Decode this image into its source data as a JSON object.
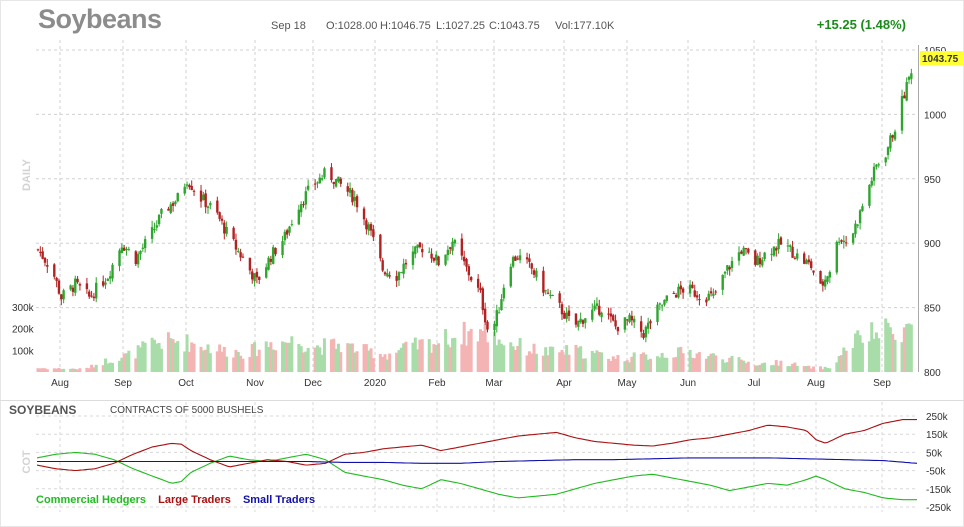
{
  "header": {
    "title": "Soybeans",
    "date": "Sep 18",
    "open": "O:1028.00",
    "high": "H:1046.75",
    "low": "L:1027.25",
    "close": "C:1043.75",
    "volume": "Vol:177.10K",
    "change": "+15.25 (1.48%)"
  },
  "colors": {
    "up": "#2ea62e",
    "down": "#b22222",
    "volume_up": "#a8dca8",
    "volume_down": "#f4b4b4",
    "last_price_bg": "#ffff33",
    "commercial": "#22bb22",
    "large": "#aa1111",
    "small": "#1111aa"
  },
  "chart_data": [
    {
      "type": "candlestick",
      "y_side_label": "DAILY",
      "last_price_label": "1043.75",
      "ylim": [
        800,
        1050
      ],
      "y_ticks": [
        "1050",
        "1000",
        "950",
        "900",
        "850",
        "800"
      ],
      "volume_ticks": [
        "300k",
        "200k",
        "100k"
      ],
      "volume_max_k": 300,
      "x_labels": [
        "Aug",
        "Sep",
        "Oct",
        "Nov",
        "Dec",
        "2020",
        "Feb",
        "Mar",
        "Apr",
        "May",
        "Jun",
        "Jul",
        "Aug",
        "Sep"
      ],
      "close_keypoints": [
        [
          0,
          895
        ],
        [
          6,
          880
        ],
        [
          10,
          858
        ],
        [
          16,
          868
        ],
        [
          22,
          858
        ],
        [
          30,
          875
        ],
        [
          36,
          900
        ],
        [
          42,
          888
        ],
        [
          48,
          905
        ],
        [
          54,
          925
        ],
        [
          60,
          935
        ],
        [
          64,
          950
        ],
        [
          70,
          935
        ],
        [
          76,
          925
        ],
        [
          82,
          905
        ],
        [
          88,
          888
        ],
        [
          94,
          870
        ],
        [
          100,
          890
        ],
        [
          106,
          905
        ],
        [
          112,
          930
        ],
        [
          118,
          945
        ],
        [
          124,
          955
        ],
        [
          130,
          945
        ],
        [
          136,
          935
        ],
        [
          142,
          912
        ],
        [
          148,
          880
        ],
        [
          154,
          875
        ],
        [
          160,
          890
        ],
        [
          166,
          898
        ],
        [
          172,
          885
        ],
        [
          178,
          902
        ],
        [
          184,
          880
        ],
        [
          190,
          860
        ],
        [
          194,
          825
        ],
        [
          198,
          850
        ],
        [
          202,
          885
        ],
        [
          206,
          890
        ],
        [
          212,
          880
        ],
        [
          218,
          862
        ],
        [
          224,
          850
        ],
        [
          230,
          835
        ],
        [
          236,
          845
        ],
        [
          242,
          850
        ],
        [
          248,
          835
        ],
        [
          254,
          840
        ],
        [
          260,
          830
        ],
        [
          266,
          848
        ],
        [
          272,
          860
        ],
        [
          278,
          865
        ],
        [
          284,
          860
        ],
        [
          290,
          858
        ],
        [
          296,
          880
        ],
        [
          302,
          895
        ],
        [
          308,
          885
        ],
        [
          314,
          895
        ],
        [
          320,
          900
        ],
        [
          326,
          890
        ],
        [
          332,
          882
        ],
        [
          336,
          865
        ],
        [
          340,
          880
        ],
        [
          344,
          905
        ],
        [
          348,
          900
        ],
        [
          352,
          918
        ],
        [
          356,
          940
        ],
        [
          360,
          960
        ],
        [
          364,
          970
        ],
        [
          368,
          990
        ],
        [
          371,
          1010
        ],
        [
          374,
          1028
        ],
        [
          376,
          1043.75
        ]
      ],
      "volume_keypoints": [
        [
          0,
          20
        ],
        [
          20,
          15
        ],
        [
          30,
          60
        ],
        [
          40,
          90
        ],
        [
          50,
          150
        ],
        [
          60,
          160
        ],
        [
          70,
          140
        ],
        [
          80,
          110
        ],
        [
          90,
          100
        ],
        [
          100,
          150
        ],
        [
          110,
          160
        ],
        [
          120,
          130
        ],
        [
          130,
          140
        ],
        [
          140,
          110
        ],
        [
          150,
          90
        ],
        [
          160,
          130
        ],
        [
          170,
          150
        ],
        [
          180,
          190
        ],
        [
          190,
          210
        ],
        [
          200,
          160
        ],
        [
          210,
          120
        ],
        [
          220,
          100
        ],
        [
          230,
          110
        ],
        [
          240,
          90
        ],
        [
          250,
          70
        ],
        [
          260,
          80
        ],
        [
          270,
          95
        ],
        [
          280,
          100
        ],
        [
          290,
          80
        ],
        [
          300,
          60
        ],
        [
          310,
          40
        ],
        [
          320,
          50
        ],
        [
          330,
          25
        ],
        [
          340,
          20
        ],
        [
          350,
          160
        ],
        [
          360,
          200
        ],
        [
          368,
          220
        ],
        [
          376,
          230
        ]
      ]
    },
    {
      "type": "line",
      "title": "SOYBEANS",
      "subtitle": "CONTRACTS OF 5000 BUSHELS",
      "y_side_label": "COT",
      "y_ticks": [
        "250k",
        "150k",
        "50k",
        "-50k",
        "-150k",
        "-250k"
      ],
      "ylim": [
        -250,
        250
      ],
      "series": [
        {
          "name": "Commercial Hedgers",
          "keypoints": [
            [
              0,
              20
            ],
            [
              20,
              40
            ],
            [
              40,
              50
            ],
            [
              60,
              40
            ],
            [
              80,
              10
            ],
            [
              100,
              -40
            ],
            [
              120,
              -80
            ],
            [
              140,
              -120
            ],
            [
              150,
              -110
            ],
            [
              160,
              -60
            ],
            [
              180,
              -10
            ],
            [
              200,
              30
            ],
            [
              220,
              10
            ],
            [
              240,
              0
            ],
            [
              260,
              20
            ],
            [
              280,
              40
            ],
            [
              300,
              10
            ],
            [
              320,
              -60
            ],
            [
              340,
              -80
            ],
            [
              360,
              -100
            ],
            [
              380,
              -130
            ],
            [
              400,
              -150
            ],
            [
              420,
              -100
            ],
            [
              440,
              -120
            ],
            [
              460,
              -150
            ],
            [
              480,
              -180
            ],
            [
              500,
              -200
            ],
            [
              520,
              -190
            ],
            [
              540,
              -180
            ],
            [
              560,
              -150
            ],
            [
              580,
              -120
            ],
            [
              600,
              -100
            ],
            [
              620,
              -80
            ],
            [
              640,
              -70
            ],
            [
              660,
              -90
            ],
            [
              680,
              -110
            ],
            [
              700,
              -130
            ],
            [
              720,
              -160
            ],
            [
              740,
              -140
            ],
            [
              760,
              -120
            ],
            [
              780,
              -130
            ],
            [
              800,
              -100
            ],
            [
              810,
              -80
            ],
            [
              820,
              -100
            ],
            [
              840,
              -150
            ],
            [
              860,
              -170
            ],
            [
              880,
              -200
            ],
            [
              900,
              -210
            ],
            [
              915,
              -210
            ]
          ]
        },
        {
          "name": "Large Traders",
          "keypoints": [
            [
              0,
              -20
            ],
            [
              20,
              -40
            ],
            [
              40,
              -50
            ],
            [
              60,
              -40
            ],
            [
              80,
              -10
            ],
            [
              100,
              40
            ],
            [
              120,
              80
            ],
            [
              140,
              100
            ],
            [
              150,
              95
            ],
            [
              160,
              60
            ],
            [
              180,
              10
            ],
            [
              200,
              -30
            ],
            [
              220,
              -10
            ],
            [
              240,
              10
            ],
            [
              260,
              0
            ],
            [
              280,
              -20
            ],
            [
              300,
              -10
            ],
            [
              320,
              40
            ],
            [
              340,
              50
            ],
            [
              360,
              70
            ],
            [
              380,
              80
            ],
            [
              400,
              90
            ],
            [
              420,
              60
            ],
            [
              440,
              80
            ],
            [
              460,
              100
            ],
            [
              480,
              120
            ],
            [
              500,
              140
            ],
            [
              520,
              150
            ],
            [
              540,
              160
            ],
            [
              560,
              130
            ],
            [
              580,
              110
            ],
            [
              600,
              100
            ],
            [
              620,
              90
            ],
            [
              640,
              85
            ],
            [
              660,
              100
            ],
            [
              680,
              120
            ],
            [
              700,
              130
            ],
            [
              720,
              150
            ],
            [
              740,
              170
            ],
            [
              760,
              200
            ],
            [
              780,
              190
            ],
            [
              800,
              170
            ],
            [
              810,
              120
            ],
            [
              820,
              100
            ],
            [
              840,
              150
            ],
            [
              860,
              170
            ],
            [
              880,
              210
            ],
            [
              900,
              230
            ],
            [
              915,
              230
            ]
          ]
        },
        {
          "name": "Small Traders",
          "keypoints": [
            [
              0,
              0
            ],
            [
              40,
              0
            ],
            [
              80,
              0
            ],
            [
              120,
              0
            ],
            [
              160,
              0
            ],
            [
              200,
              0
            ],
            [
              240,
              0
            ],
            [
              280,
              0
            ],
            [
              320,
              -5
            ],
            [
              360,
              -5
            ],
            [
              400,
              -10
            ],
            [
              440,
              -10
            ],
            [
              480,
              0
            ],
            [
              520,
              5
            ],
            [
              560,
              10
            ],
            [
              600,
              10
            ],
            [
              640,
              15
            ],
            [
              680,
              20
            ],
            [
              720,
              20
            ],
            [
              760,
              20
            ],
            [
              800,
              15
            ],
            [
              840,
              10
            ],
            [
              880,
              5
            ],
            [
              915,
              -10
            ]
          ]
        }
      ]
    }
  ]
}
